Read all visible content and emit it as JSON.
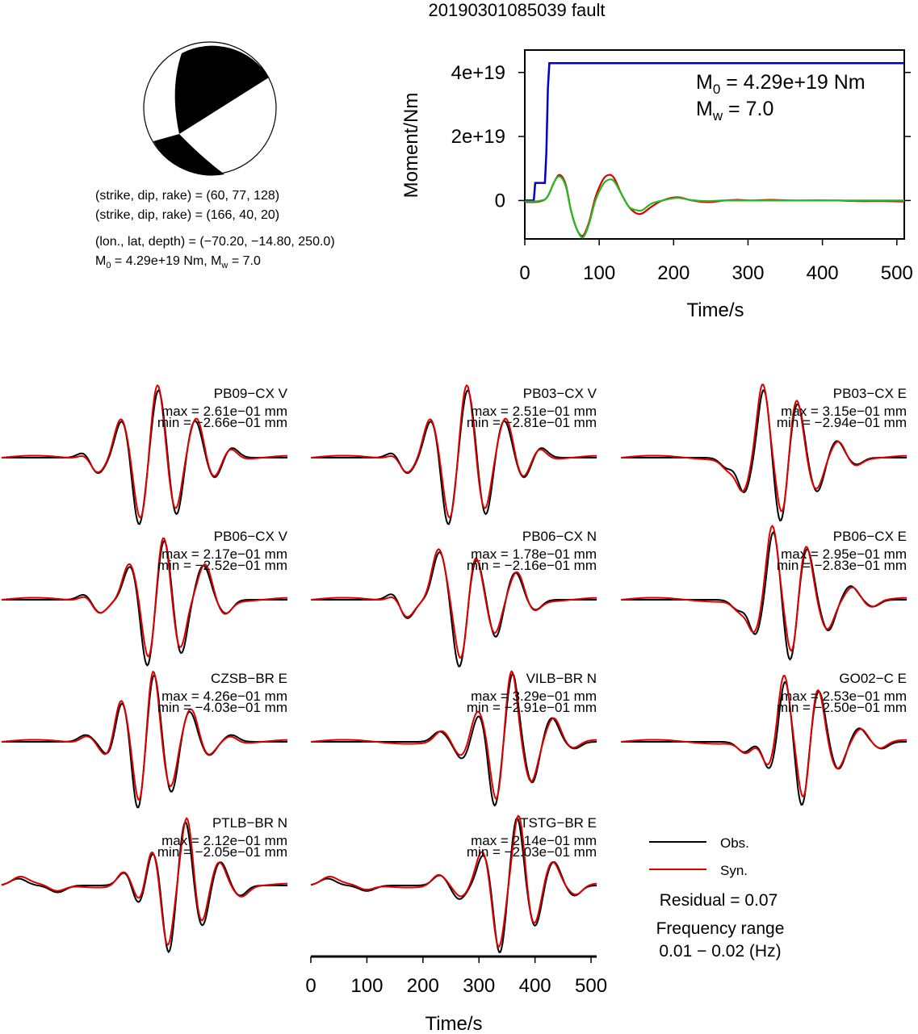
{
  "title": "20190301085039 fault",
  "colors": {
    "obs": "#000000",
    "syn": "#dd0000",
    "moment": "#0000cc",
    "stf_green": "#22bb22"
  },
  "mechanism": {
    "plane1": "(strike, dip, rake) = (60, 77, 128)",
    "plane2": "(strike, dip, rake) = (166, 40, 20)",
    "location": "(lon., lat, depth) = (−70.20, −14.80, 250.0)",
    "moment_label": "M",
    "moment_sub": "0",
    "moment_rest": " = 4.29e+19 Nm, M",
    "mw_sub": "w",
    "mw_rest": " = 7.0"
  },
  "chart_data": [
    {
      "type": "line",
      "panel": "moment-function",
      "xlabel": "Time/s",
      "ylabel": "Moment/Nm",
      "xlim": [
        0,
        510
      ],
      "ylim": [
        -1.2e+19,
        4.7e+19
      ],
      "xticks": [
        0,
        100,
        200,
        300,
        400,
        500
      ],
      "yticks": [
        0,
        2e+19,
        4e+19
      ],
      "ytick_labels": [
        "0",
        "2e+19",
        "4e+19"
      ],
      "annotation": {
        "m0_label": "M",
        "m0_sub": "0",
        "m0_rest": " = 4.29e+19 Nm",
        "mw_label": "M",
        "mw_sub": "w",
        "mw_rest": " = 7.0"
      },
      "series": [
        {
          "color": "blue",
          "x": [
            0,
            12,
            14,
            27,
            29,
            31,
            33,
            35,
            510
          ],
          "y": [
            0,
            0,
            5.5e+18,
            5.5e+18,
            1.5e+19,
            3.5e+19,
            4.29e+19,
            4.29e+19,
            4.29e+19
          ]
        },
        {
          "color": "red",
          "x": [
            0,
            10,
            20,
            30,
            40,
            47,
            55,
            62,
            70,
            78,
            86,
            95,
            105,
            113,
            120,
            130,
            140,
            150,
            158,
            170,
            185,
            205,
            225,
            245,
            265,
            285,
            305,
            330,
            360,
            390,
            420,
            450,
            480,
            510
          ],
          "y": [
            -5e+17,
            -5e+17,
            -3e+17,
            1e+18,
            6e+18,
            8e+18,
            5e+18,
            -3e+18,
            -9e+18,
            -1.1e+19,
            -7e+18,
            1e+18,
            6.5e+18,
            8e+18,
            7e+18,
            2e+18,
            -2e+18,
            -4e+18,
            -4e+18,
            -2e+18,
            0,
            1e+18,
            0,
            -5e+17,
            -1e+17,
            2e+17,
            0,
            2e+17,
            0,
            5e+16,
            0,
            -2e+17,
            -2e+17,
            -3e+17
          ]
        },
        {
          "color": "green",
          "x": [
            0,
            10,
            20,
            30,
            40,
            47,
            55,
            62,
            70,
            78,
            86,
            95,
            105,
            113,
            120,
            130,
            140,
            150,
            158,
            170,
            185,
            205,
            225,
            245,
            265,
            285,
            305,
            330,
            360,
            390,
            420,
            450,
            480,
            510
          ],
          "y": [
            -3e+17,
            -3e+17,
            -1e+17,
            1e+18,
            6e+18,
            7.5e+18,
            4.5e+18,
            -3e+18,
            -9e+18,
            -1.15e+19,
            -7.5e+18,
            0,
            5e+18,
            6.5e+18,
            6e+18,
            2e+18,
            -2e+18,
            -3e+18,
            -3e+18,
            -1e+18,
            0,
            8e+17,
            1e+17,
            -2e+17,
            0,
            0,
            0,
            0,
            0,
            0,
            0,
            0,
            0,
            0
          ]
        }
      ]
    },
    {
      "type": "line",
      "panel": "waveforms",
      "xlabel": "Time/s",
      "xlim": [
        0,
        510
      ],
      "xticks": [
        0,
        100,
        200,
        300,
        400,
        500
      ],
      "legend": {
        "placement": "bottom-right",
        "obs": "Obs.",
        "syn": "Syn."
      },
      "residual": "Residual = 0.07",
      "freq_title": "Frequency range",
      "freq_range": "0.01 − 0.02 (Hz)",
      "stations": [
        {
          "name": "PB09−CX V",
          "max": "max = 2.61e−01 mm",
          "min": "min = −2.66e−01 mm",
          "pulses": [
            [
              150,
              0.12,
              12
            ],
            [
              170,
              -0.25,
              14
            ],
            [
              215,
              0.55,
              12
            ],
            [
              245,
              -1.0,
              11
            ],
            [
              280,
              1.0,
              11
            ],
            [
              312,
              -0.85,
              11
            ],
            [
              345,
              0.55,
              12
            ],
            [
              380,
              -0.3,
              12
            ],
            [
              410,
              0.15,
              12
            ]
          ]
        },
        {
          "name": "PB03−CX V",
          "max": "max = 2.51e−01 mm",
          "min": "min = −2.81e−01 mm",
          "pulses": [
            [
              150,
              0.12,
              12
            ],
            [
              170,
              -0.25,
              14
            ],
            [
              215,
              0.55,
              12
            ],
            [
              245,
              -1.0,
              11
            ],
            [
              280,
              1.0,
              11
            ],
            [
              312,
              -0.85,
              11
            ],
            [
              345,
              0.55,
              12
            ],
            [
              380,
              -0.3,
              12
            ],
            [
              410,
              0.15,
              12
            ]
          ]
        },
        {
          "name": "PB03−CX E",
          "max": "max = 3.15e−01 mm",
          "min": "min = −2.94e−01 mm",
          "pulses": [
            [
              190,
              -0.15,
              12
            ],
            [
              220,
              -0.5,
              11
            ],
            [
              255,
              1.0,
              10
            ],
            [
              285,
              -0.95,
              10
            ],
            [
              315,
              0.8,
              11
            ],
            [
              350,
              -0.5,
              12
            ],
            [
              385,
              0.25,
              12
            ],
            [
              420,
              -0.1,
              12
            ]
          ]
        },
        {
          "name": "PB06−CX V",
          "max": "max = 2.17e−01 mm",
          "min": "min = −2.52e−01 mm",
          "pulses": [
            [
              150,
              0.1,
              12
            ],
            [
              175,
              -0.2,
              14
            ],
            [
              230,
              0.5,
              12
            ],
            [
              260,
              -1.0,
              11
            ],
            [
              290,
              0.9,
              11
            ],
            [
              320,
              -0.8,
              11
            ],
            [
              360,
              0.5,
              12
            ],
            [
              400,
              -0.2,
              12
            ]
          ]
        },
        {
          "name": "PB06−CX N",
          "max": "max = 1.78e−01 mm",
          "min": "min = −2.16e−01 mm",
          "pulses": [
            [
              150,
              0.15,
              12
            ],
            [
              170,
              -0.3,
              14
            ],
            [
              230,
              0.7,
              12
            ],
            [
              265,
              -1.0,
              11
            ],
            [
              295,
              0.6,
              11
            ],
            [
              330,
              -0.55,
              11
            ],
            [
              365,
              0.4,
              12
            ],
            [
              400,
              -0.15,
              12
            ]
          ]
        },
        {
          "name": "PB06−CX E",
          "max": "max = 2.95e−01 mm",
          "min": "min = −2.83e−01 mm",
          "pulses": [
            [
              210,
              -0.15,
              12
            ],
            [
              240,
              -0.5,
              11
            ],
            [
              272,
              1.0,
              10
            ],
            [
              302,
              -0.9,
              10
            ],
            [
              332,
              0.75,
              11
            ],
            [
              370,
              -0.45,
              12
            ],
            [
              410,
              0.2,
              12
            ],
            [
              450,
              -0.1,
              12
            ]
          ]
        },
        {
          "name": "CZSB−BR E",
          "max": "max = 4.26e−01 mm",
          "min": "min = −4.03e−01 mm",
          "pulses": [
            [
              150,
              0.1,
              12
            ],
            [
              190,
              -0.2,
              12
            ],
            [
              215,
              0.6,
              11
            ],
            [
              243,
              -1.0,
              10
            ],
            [
              272,
              1.0,
              10
            ],
            [
              303,
              -0.75,
              11
            ],
            [
              335,
              0.45,
              12
            ],
            [
              370,
              -0.2,
              12
            ],
            [
              410,
              0.1,
              12
            ]
          ]
        },
        {
          "name": "VILB−BR N",
          "max": "max = 3.29e−01 mm",
          "min": "min = −2.91e−01 mm",
          "pulses": [
            [
              230,
              0.15,
              12
            ],
            [
              270,
              -0.25,
              12
            ],
            [
              300,
              0.4,
              11
            ],
            [
              328,
              -0.95,
              10
            ],
            [
              360,
              1.0,
              10
            ],
            [
              395,
              -0.6,
              11
            ],
            [
              430,
              0.35,
              12
            ],
            [
              470,
              -0.1,
              12
            ]
          ]
        },
        {
          "name": "GO02−C E",
          "max": "max = 2.53e−01 mm",
          "min": "min = −2.50e−01 mm",
          "pulses": [
            [
              220,
              -0.15,
              12
            ],
            [
              265,
              -0.4,
              11
            ],
            [
              293,
              0.9,
              10
            ],
            [
              323,
              -0.95,
              10
            ],
            [
              353,
              0.75,
              11
            ],
            [
              388,
              -0.4,
              12
            ],
            [
              425,
              0.2,
              12
            ],
            [
              465,
              -0.1,
              12
            ]
          ]
        },
        {
          "name": "PTLB−BR N",
          "max": "max = 2.12e−01 mm",
          "min": "min = −2.05e−01 mm",
          "pulses": [
            [
              30,
              0.1,
              14
            ],
            [
              100,
              -0.1,
              14
            ],
            [
              220,
              0.2,
              12
            ],
            [
              245,
              -0.3,
              11
            ],
            [
              270,
              0.5,
              11
            ],
            [
              298,
              -1.0,
              10
            ],
            [
              328,
              0.95,
              10
            ],
            [
              358,
              -0.6,
              11
            ],
            [
              390,
              0.35,
              12
            ],
            [
              425,
              -0.15,
              12
            ]
          ]
        },
        {
          "name": "TSTG−BR E",
          "max": "max = 2.14e−01 mm",
          "min": "min = −2.03e−01 mm",
          "pulses": [
            [
              30,
              0.1,
              14
            ],
            [
              100,
              -0.08,
              14
            ],
            [
              230,
              0.15,
              12
            ],
            [
              265,
              -0.2,
              12
            ],
            [
              308,
              0.45,
              11
            ],
            [
              337,
              -1.0,
              10
            ],
            [
              368,
              1.0,
              10
            ],
            [
              400,
              -0.6,
              11
            ],
            [
              433,
              0.35,
              12
            ],
            [
              470,
              -0.15,
              12
            ]
          ]
        }
      ]
    }
  ]
}
